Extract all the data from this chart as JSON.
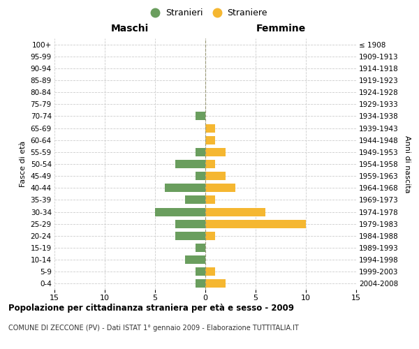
{
  "age_groups": [
    "100+",
    "95-99",
    "90-94",
    "85-89",
    "80-84",
    "75-79",
    "70-74",
    "65-69",
    "60-64",
    "55-59",
    "50-54",
    "45-49",
    "40-44",
    "35-39",
    "30-34",
    "25-29",
    "20-24",
    "15-19",
    "10-14",
    "5-9",
    "0-4"
  ],
  "birth_years": [
    "≤ 1908",
    "1909-1913",
    "1914-1918",
    "1919-1923",
    "1924-1928",
    "1929-1933",
    "1934-1938",
    "1939-1943",
    "1944-1948",
    "1949-1953",
    "1954-1958",
    "1959-1963",
    "1964-1968",
    "1969-1973",
    "1974-1978",
    "1979-1983",
    "1984-1988",
    "1989-1993",
    "1994-1998",
    "1999-2003",
    "2004-2008"
  ],
  "maschi": [
    0,
    0,
    0,
    0,
    0,
    0,
    1,
    0,
    0,
    1,
    3,
    1,
    4,
    2,
    5,
    3,
    3,
    1,
    2,
    1,
    1
  ],
  "femmine": [
    0,
    0,
    0,
    0,
    0,
    0,
    0,
    1,
    1,
    2,
    1,
    2,
    3,
    1,
    6,
    10,
    1,
    0,
    0,
    1,
    2
  ],
  "color_maschi": "#6a9e5e",
  "color_femmine": "#f5b731",
  "title": "Popolazione per cittadinanza straniera per età e sesso - 2009",
  "subtitle": "COMUNE DI ZECCONE (PV) - Dati ISTAT 1° gennaio 2009 - Elaborazione TUTTITALIA.IT",
  "xlabel_left": "Maschi",
  "xlabel_right": "Femmine",
  "ylabel_left": "Fasce di età",
  "ylabel_right": "Anni di nascita",
  "xlim": 15,
  "legend_stranieri": "Stranieri",
  "legend_straniere": "Straniere",
  "background_color": "#ffffff",
  "grid_color": "#cccccc",
  "center_line_color": "#999977"
}
